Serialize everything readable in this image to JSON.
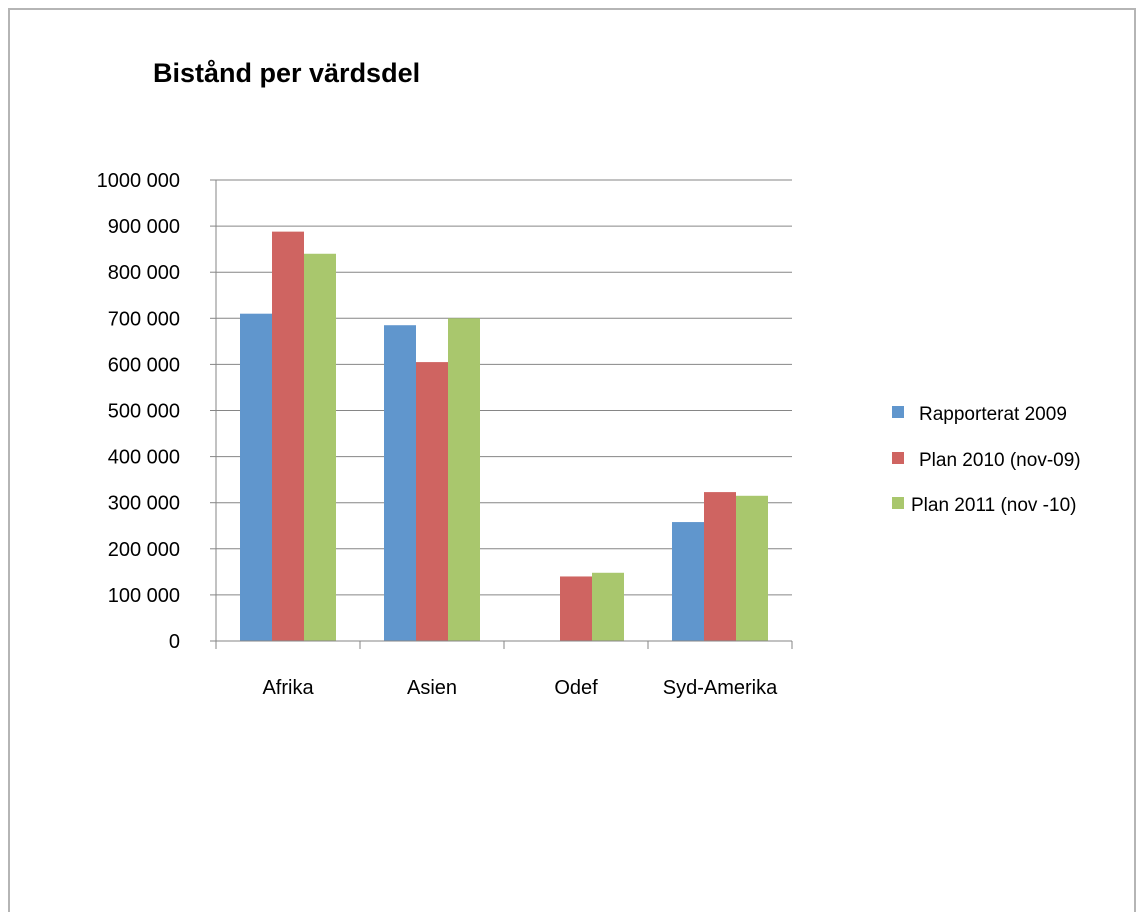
{
  "chart_data": {
    "type": "bar",
    "title": "Bistånd per värdsdel",
    "categories": [
      "Afrika",
      "Asien",
      "Odef",
      "Syd-Amerika"
    ],
    "series": [
      {
        "name": "Rapporterat 2009",
        "color": "#6096cd",
        "values": [
          710000,
          685000,
          0,
          258000
        ]
      },
      {
        "name": "Plan 2010 (nov-09)",
        "color": "#cf6461",
        "values": [
          888000,
          605000,
          140000,
          323000
        ]
      },
      {
        "name": "Plan 2011 (nov -10)",
        "color": "#a9c76d",
        "values": [
          840000,
          700000,
          148000,
          315000
        ]
      }
    ],
    "ylim": [
      0,
      1000000
    ],
    "ytick_labels": [
      "0",
      "100 000",
      "200 000",
      "300 000",
      "400 000",
      "500 000",
      "600 000",
      "700 000",
      "800 000",
      "900 000",
      "1000 000"
    ],
    "grid": true,
    "legend": "right"
  }
}
